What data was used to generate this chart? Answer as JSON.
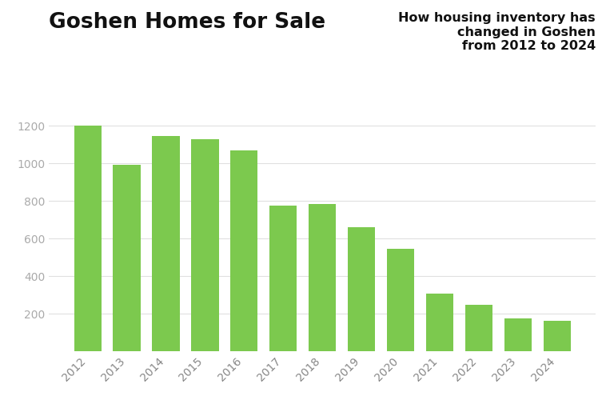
{
  "title": "Goshen Homes for Sale",
  "subtitle": "How housing inventory has\nchanged in Goshen\nfrom 2012 to 2024",
  "years": [
    "2012",
    "2013",
    "2014",
    "2015",
    "2016",
    "2017",
    "2018",
    "2019",
    "2020",
    "2021",
    "2022",
    "2023",
    "2024"
  ],
  "values": [
    1200,
    995,
    1145,
    1130,
    1070,
    775,
    785,
    660,
    548,
    310,
    248,
    178,
    165
  ],
  "bar_color": "#7cc94e",
  "background_color": "#ffffff",
  "yticks": [
    200,
    400,
    600,
    800,
    1000,
    1200
  ],
  "ylim": [
    0,
    1290
  ],
  "title_fontsize": 19,
  "subtitle_fontsize": 11.5,
  "tick_fontsize": 10,
  "ytick_color": "#aaaaaa",
  "xtick_color": "#888888",
  "bar_width": 0.7,
  "grid_color": "#e0e0e0",
  "grid_linewidth": 0.8
}
